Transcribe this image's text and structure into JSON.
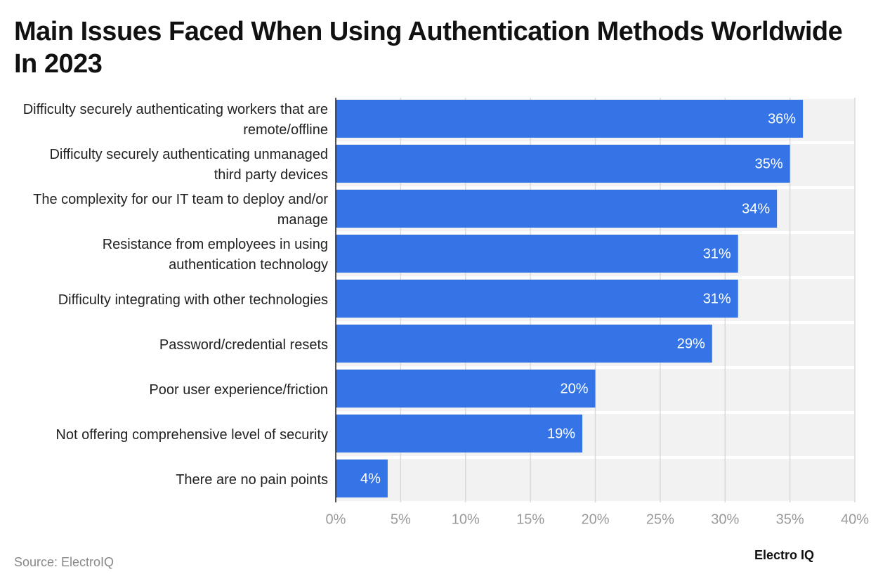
{
  "chart_data": {
    "type": "bar",
    "orientation": "horizontal",
    "title": "Main Issues Faced When Using Authentication Methods Worldwide In 2023",
    "categories": [
      "Difficulty securely authenticating workers that are remote/offline",
      "Difficulty securely authenticating unmanaged third party devices",
      "The complexity for our IT team to deploy and/or manage",
      "Resistance from employees in using authentication technology",
      "Difficulty integrating with other technologies",
      "Password/credential resets",
      "Poor user experience/friction",
      "Not offering comprehensive level of security",
      "There are no pain points"
    ],
    "values": [
      36,
      35,
      34,
      31,
      31,
      29,
      20,
      19,
      4
    ],
    "value_labels": [
      "36%",
      "35%",
      "34%",
      "31%",
      "31%",
      "29%",
      "20%",
      "19%",
      "4%"
    ],
    "color": "#3474e6",
    "xlim": [
      0,
      40
    ],
    "xticks": [
      {
        "value": 0,
        "label": "0%"
      },
      {
        "value": 5,
        "label": "5%"
      },
      {
        "value": 10,
        "label": "10%"
      },
      {
        "value": 15,
        "label": "15%"
      },
      {
        "value": 20,
        "label": "20%"
      },
      {
        "value": 25,
        "label": "25%"
      },
      {
        "value": 30,
        "label": "30%"
      },
      {
        "value": 35,
        "label": "35%"
      },
      {
        "value": 40,
        "label": "40%"
      }
    ],
    "grid": true,
    "source": "Source: ElectroIQ",
    "brand": "Electro IQ"
  }
}
